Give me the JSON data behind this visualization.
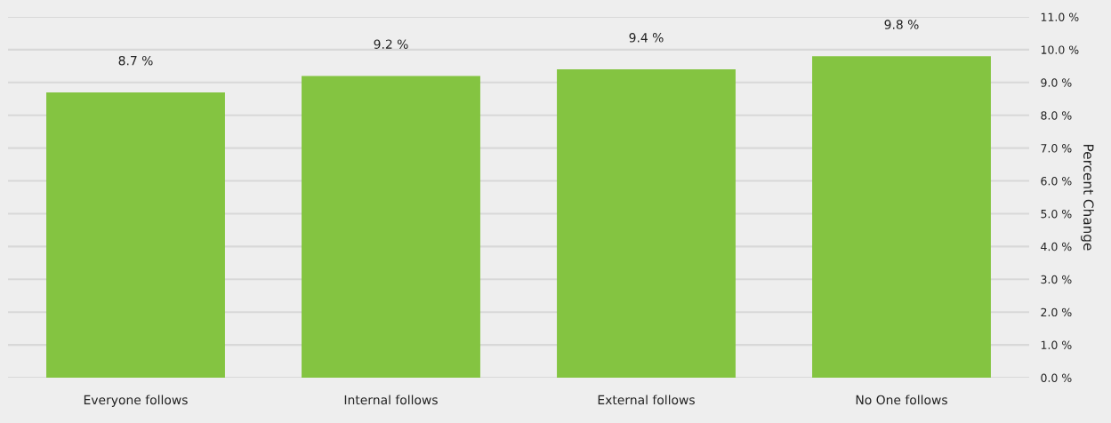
{
  "chart_data": {
    "type": "bar",
    "categories": [
      "Everyone follows",
      "Internal follows",
      "External follows",
      "No One follows"
    ],
    "values": [
      8.7,
      9.2,
      9.4,
      9.8
    ],
    "value_labels": [
      "8.7 %",
      "9.2 %",
      "9.4 %",
      "9.8 %"
    ],
    "color": "#84c441",
    "ylabel": "Percent Change",
    "ylim": [
      0,
      11
    ],
    "yticks": [
      {
        "value": 0,
        "label": "0.0 %"
      },
      {
        "value": 1,
        "label": "1.0 %"
      },
      {
        "value": 2,
        "label": "2.0 %"
      },
      {
        "value": 3,
        "label": "3.0 %"
      },
      {
        "value": 4,
        "label": "4.0 %"
      },
      {
        "value": 5,
        "label": "5.0 %"
      },
      {
        "value": 6,
        "label": "6.0 %"
      },
      {
        "value": 7,
        "label": "7.0 %"
      },
      {
        "value": 8,
        "label": "8.0 %"
      },
      {
        "value": 9,
        "label": "9.0 %"
      },
      {
        "value": 10,
        "label": "10.0 %"
      },
      {
        "value": 11,
        "label": "11.0 %"
      }
    ],
    "grid": "y",
    "legend": false
  }
}
